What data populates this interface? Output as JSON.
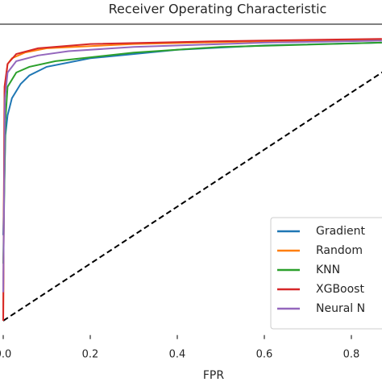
{
  "chart_data": {
    "type": "line",
    "title": "Receiver Operating Characteristic",
    "x_label": "FPR",
    "xlim": [
      -0.05,
      1.05
    ],
    "ylim": [
      -0.05,
      1.05
    ],
    "xticks": [
      {
        "value": 0,
        "label": "0.0"
      },
      0.2,
      0.4,
      0.6,
      0.8
    ],
    "legend": "lower right",
    "series": [
      {
        "name": "Gradient",
        "color": "#1f77b4",
        "x": [
          0,
          0.005,
          0.01,
          0.02,
          0.04,
          0.06,
          0.1,
          0.2,
          0.4,
          0.6,
          0.87
        ],
        "values": [
          0.3,
          0.65,
          0.72,
          0.78,
          0.83,
          0.86,
          0.89,
          0.92,
          0.95,
          0.965,
          0.975
        ]
      },
      {
        "name": "Random",
        "color": "#ff7f0e",
        "x": [
          0,
          0.003,
          0.01,
          0.02,
          0.05,
          0.1,
          0.3,
          0.6,
          0.87
        ],
        "values": [
          0,
          0.8,
          0.9,
          0.92,
          0.94,
          0.955,
          0.97,
          0.98,
          0.985
        ]
      },
      {
        "name": "KNN",
        "color": "#2ca02c",
        "x": [
          0,
          0.005,
          0.01,
          0.03,
          0.06,
          0.12,
          0.3,
          0.5,
          0.87
        ],
        "values": [
          0.2,
          0.7,
          0.82,
          0.87,
          0.89,
          0.91,
          0.94,
          0.96,
          0.975
        ]
      },
      {
        "name": "XGBoost",
        "color": "#d62728",
        "x": [
          0,
          0.003,
          0.01,
          0.03,
          0.08,
          0.2,
          0.5,
          0.87
        ],
        "values": [
          0,
          0.82,
          0.9,
          0.935,
          0.955,
          0.97,
          0.98,
          0.988
        ]
      },
      {
        "name": "Neural N",
        "color": "#9467bd",
        "x": [
          0,
          0.004,
          0.01,
          0.03,
          0.08,
          0.15,
          0.3,
          0.6,
          0.87
        ],
        "values": [
          0.1,
          0.78,
          0.87,
          0.91,
          0.93,
          0.945,
          0.96,
          0.975,
          0.982
        ]
      }
    ],
    "diagonal": {
      "color": "#000000",
      "x": [
        0,
        1
      ],
      "values": [
        0,
        1
      ]
    }
  }
}
